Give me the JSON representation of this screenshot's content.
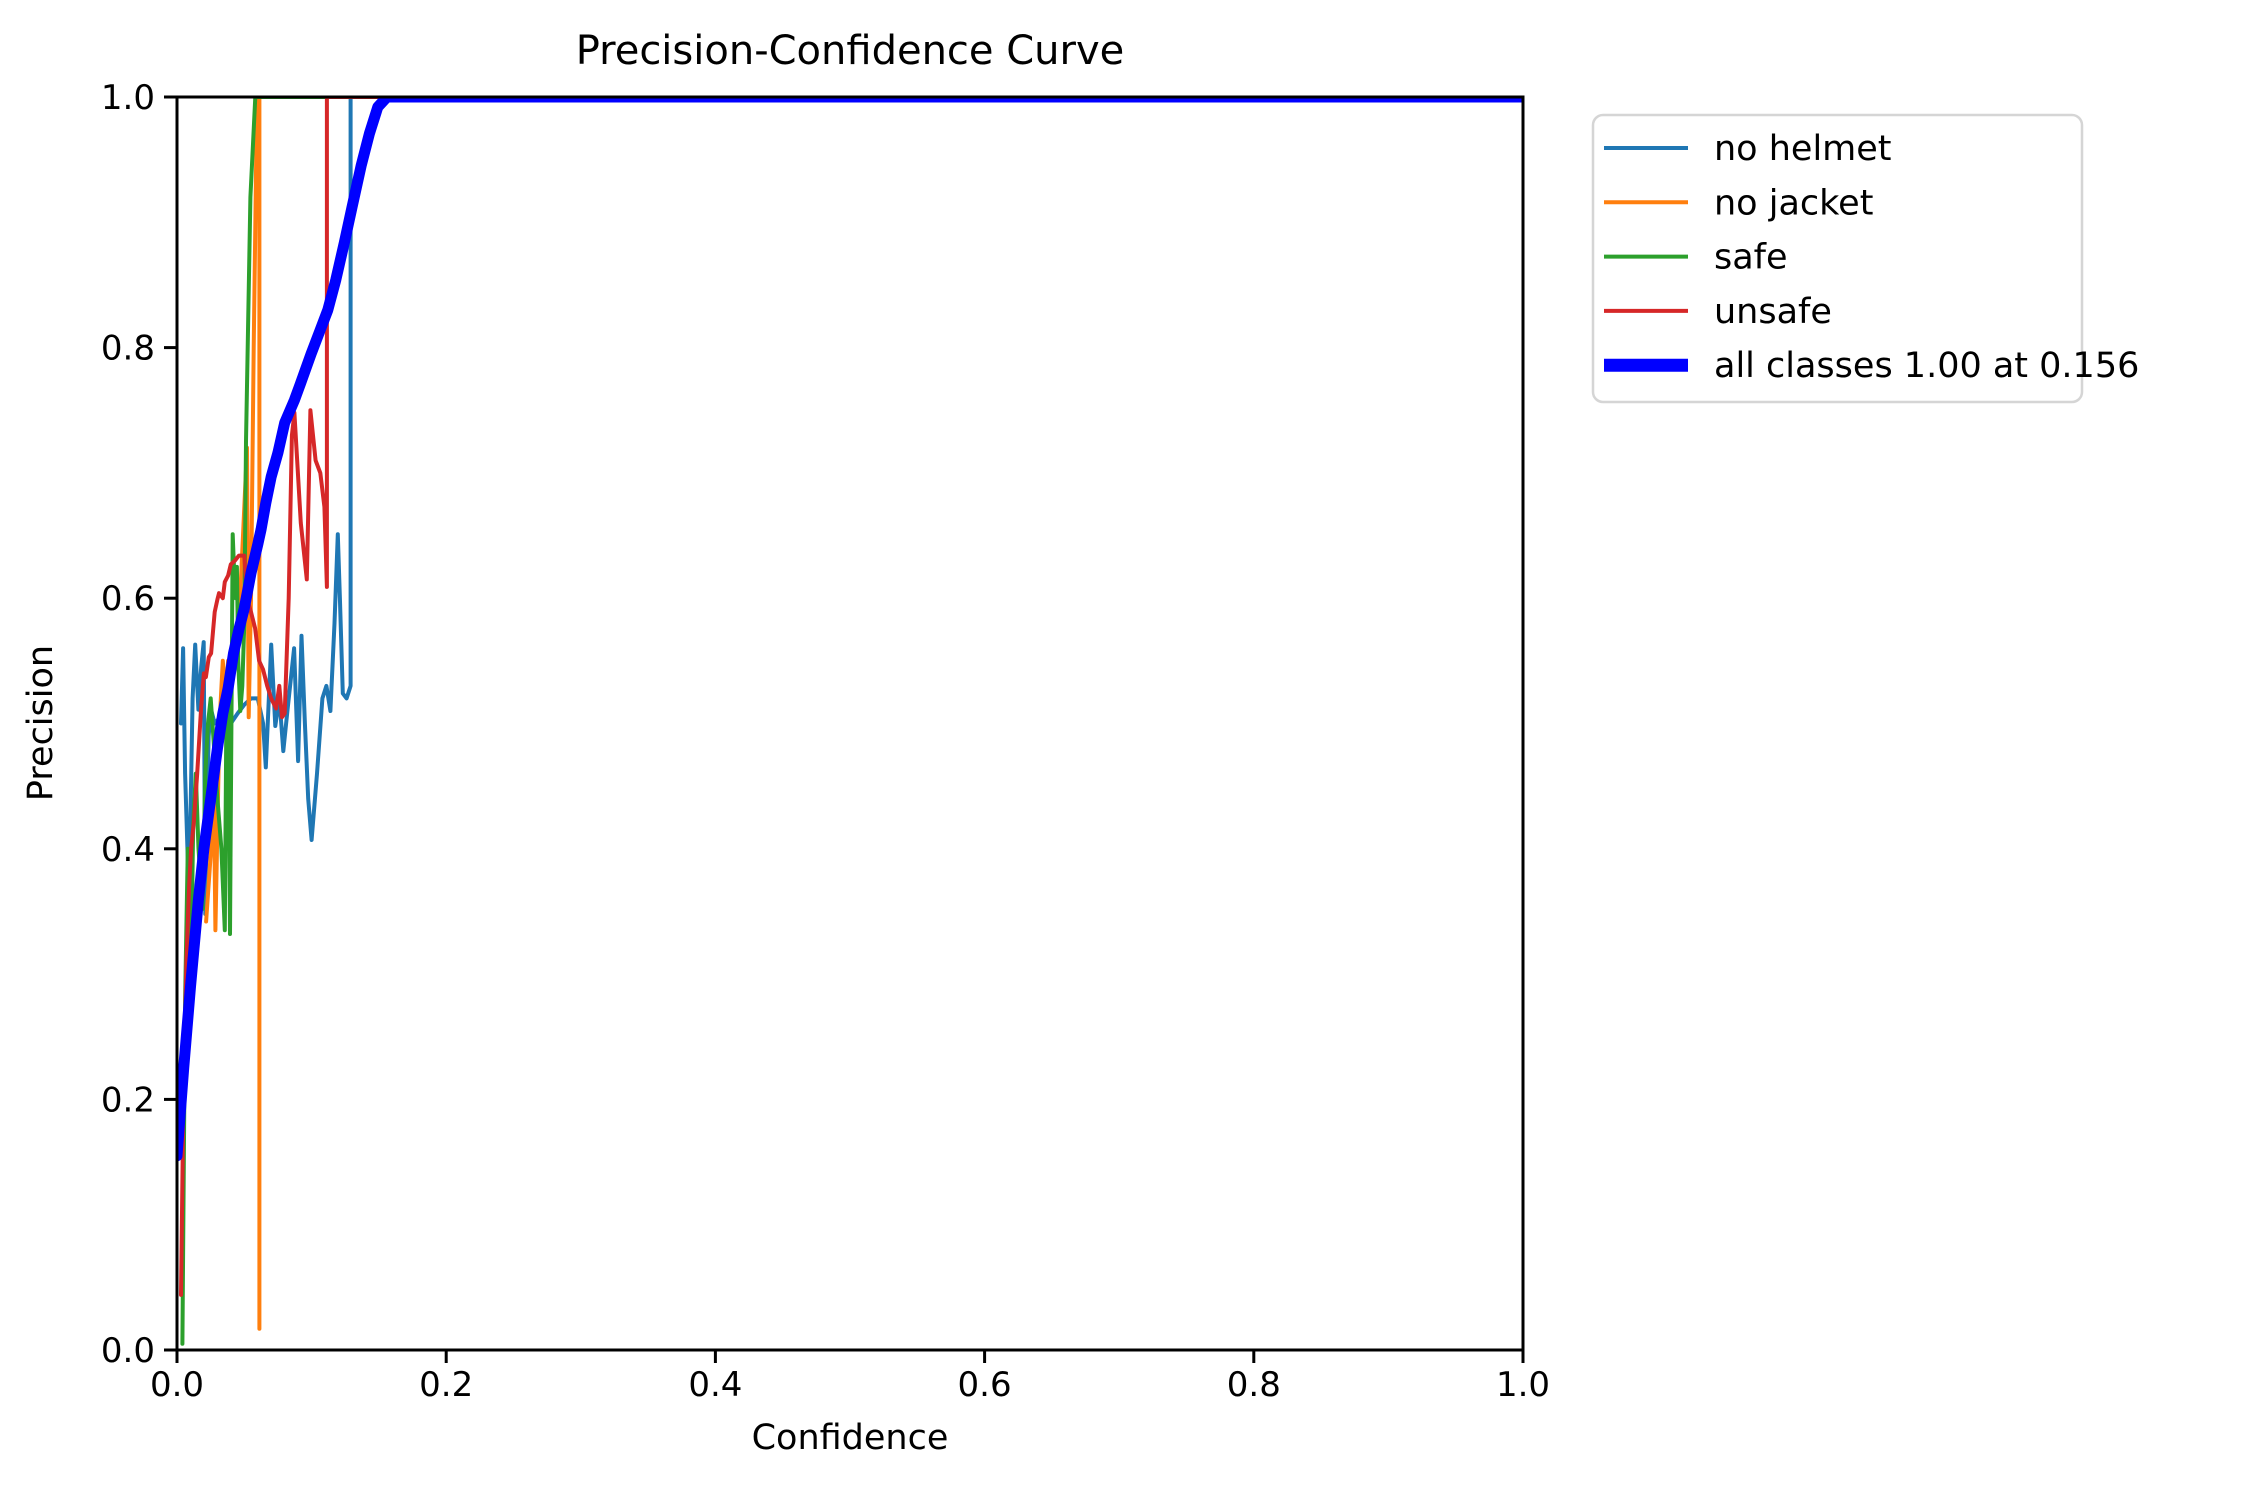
{
  "chart_data": {
    "type": "line",
    "title": "Precision-Confidence Curve",
    "xlabel": "Confidence",
    "ylabel": "Precision",
    "xlim": [
      0.0,
      1.0
    ],
    "ylim": [
      0.0,
      1.0
    ],
    "xticks": [
      0.0,
      0.2,
      0.4,
      0.6,
      0.8,
      1.0
    ],
    "yticks": [
      0.0,
      0.2,
      0.4,
      0.6,
      0.8,
      1.0
    ],
    "tick_decimals": 1,
    "grid": false,
    "legend_position": "outside-upper-right",
    "background_color": "#ffffff",
    "axis_color": "#000000",
    "legend_border_color": "#d5d5d5",
    "series": [
      {
        "name": "no helmet",
        "color": "#1f77b4",
        "line_width": 4,
        "points": [
          [
            0.003,
            0.5
          ],
          [
            0.0045,
            0.56
          ],
          [
            0.006,
            0.46
          ],
          [
            0.0089,
            0.36
          ],
          [
            0.0116,
            0.52
          ],
          [
            0.0135,
            0.563
          ],
          [
            0.0159,
            0.511
          ],
          [
            0.018,
            0.545
          ],
          [
            0.0198,
            0.565
          ],
          [
            0.021,
            0.348
          ],
          [
            0.0235,
            0.49
          ],
          [
            0.0253,
            0.511
          ],
          [
            0.028,
            0.5
          ],
          [
            0.032,
            0.505
          ],
          [
            0.036,
            0.51
          ],
          [
            0.04,
            0.5
          ],
          [
            0.045,
            0.508
          ],
          [
            0.05,
            0.515
          ],
          [
            0.055,
            0.52
          ],
          [
            0.06,
            0.52
          ],
          [
            0.064,
            0.5
          ],
          [
            0.066,
            0.465
          ],
          [
            0.07,
            0.563
          ],
          [
            0.073,
            0.498
          ],
          [
            0.076,
            0.521
          ],
          [
            0.079,
            0.478
          ],
          [
            0.082,
            0.51
          ],
          [
            0.087,
            0.56
          ],
          [
            0.09,
            0.47
          ],
          [
            0.0925,
            0.57
          ],
          [
            0.095,
            0.5
          ],
          [
            0.0975,
            0.44
          ],
          [
            0.1,
            0.407
          ],
          [
            0.104,
            0.46
          ],
          [
            0.108,
            0.52
          ],
          [
            0.111,
            0.53
          ],
          [
            0.114,
            0.51
          ],
          [
            0.117,
            0.58
          ],
          [
            0.1195,
            0.651
          ],
          [
            0.121,
            0.6
          ],
          [
            0.1232,
            0.524
          ],
          [
            0.126,
            0.52
          ],
          [
            0.129,
            0.53
          ],
          [
            0.129,
            1.0
          ],
          [
            1.0,
            1.0
          ]
        ]
      },
      {
        "name": "no jacket",
        "color": "#ff7f0e",
        "line_width": 4,
        "points": [
          [
            0.0216,
            0.342
          ],
          [
            0.0253,
            0.4
          ],
          [
            0.0275,
            0.439
          ],
          [
            0.0285,
            0.335
          ],
          [
            0.0315,
            0.498
          ],
          [
            0.034,
            0.55
          ],
          [
            0.036,
            0.52
          ],
          [
            0.038,
            0.55
          ],
          [
            0.04,
            0.53
          ],
          [
            0.043,
            0.55
          ],
          [
            0.046,
            0.58
          ],
          [
            0.049,
            0.65
          ],
          [
            0.052,
            0.72
          ],
          [
            0.0533,
            0.505
          ],
          [
            0.055,
            0.6
          ],
          [
            0.057,
            0.8
          ],
          [
            0.0594,
            1.0
          ],
          [
            0.0612,
            1.0
          ],
          [
            0.0612,
            0.017
          ]
        ]
      },
      {
        "name": "safe",
        "color": "#2ca02c",
        "line_width": 4,
        "points": [
          [
            0.004,
            0.005
          ],
          [
            0.006,
            0.28
          ],
          [
            0.008,
            0.4
          ],
          [
            0.0104,
            0.3
          ],
          [
            0.012,
            0.42
          ],
          [
            0.014,
            0.46
          ],
          [
            0.016,
            0.4
          ],
          [
            0.019,
            0.352
          ],
          [
            0.021,
            0.46
          ],
          [
            0.023,
            0.5
          ],
          [
            0.025,
            0.52
          ],
          [
            0.027,
            0.49
          ],
          [
            0.03,
            0.44
          ],
          [
            0.033,
            0.4
          ],
          [
            0.0355,
            0.335
          ],
          [
            0.0368,
            0.52
          ],
          [
            0.0378,
            0.545
          ],
          [
            0.0388,
            0.42
          ],
          [
            0.0394,
            0.332
          ],
          [
            0.0414,
            0.651
          ],
          [
            0.0425,
            0.62
          ],
          [
            0.0435,
            0.6
          ],
          [
            0.0445,
            0.625
          ],
          [
            0.0455,
            0.55
          ],
          [
            0.047,
            0.51
          ],
          [
            0.0485,
            0.53
          ],
          [
            0.05,
            0.58
          ],
          [
            0.0513,
            0.725
          ],
          [
            0.0545,
            0.92
          ],
          [
            0.0582,
            1.0
          ],
          [
            1.0,
            1.0
          ]
        ]
      },
      {
        "name": "unsafe",
        "color": "#d62728",
        "line_width": 4,
        "points": [
          [
            0.003,
            0.044
          ],
          [
            0.005,
            0.22
          ],
          [
            0.007,
            0.31
          ],
          [
            0.009,
            0.37
          ],
          [
            0.0105,
            0.4
          ],
          [
            0.0124,
            0.42
          ],
          [
            0.015,
            0.46
          ],
          [
            0.0178,
            0.511
          ],
          [
            0.02,
            0.54
          ],
          [
            0.0215,
            0.537
          ],
          [
            0.0236,
            0.553
          ],
          [
            0.0253,
            0.556
          ],
          [
            0.028,
            0.589
          ],
          [
            0.03,
            0.599
          ],
          [
            0.0312,
            0.604
          ],
          [
            0.034,
            0.6
          ],
          [
            0.0355,
            0.613
          ],
          [
            0.038,
            0.618
          ],
          [
            0.04,
            0.627
          ],
          [
            0.043,
            0.63
          ],
          [
            0.046,
            0.634
          ],
          [
            0.05,
            0.634
          ],
          [
            0.052,
            0.6
          ],
          [
            0.055,
            0.589
          ],
          [
            0.058,
            0.576
          ],
          [
            0.061,
            0.55
          ],
          [
            0.064,
            0.543
          ],
          [
            0.067,
            0.53
          ],
          [
            0.07,
            0.52
          ],
          [
            0.0736,
            0.512
          ],
          [
            0.076,
            0.53
          ],
          [
            0.078,
            0.505
          ],
          [
            0.08,
            0.508
          ],
          [
            0.083,
            0.6
          ],
          [
            0.0854,
            0.73
          ],
          [
            0.0872,
            0.748
          ],
          [
            0.092,
            0.66
          ],
          [
            0.0964,
            0.615
          ],
          [
            0.0991,
            0.75
          ],
          [
            0.103,
            0.71
          ],
          [
            0.1065,
            0.7
          ],
          [
            0.1095,
            0.673
          ],
          [
            0.1114,
            0.609
          ],
          [
            0.1114,
            1.0
          ],
          [
            1.0,
            1.0
          ]
        ]
      },
      {
        "name": "all classes 1.00 at 0.156",
        "color": "#0000ff",
        "line_width": 11,
        "points": [
          [
            0.0,
            0.155
          ],
          [
            0.005,
            0.225
          ],
          [
            0.01,
            0.29
          ],
          [
            0.013,
            0.325
          ],
          [
            0.016,
            0.36
          ],
          [
            0.02,
            0.4
          ],
          [
            0.025,
            0.44
          ],
          [
            0.03,
            0.48
          ],
          [
            0.034,
            0.508
          ],
          [
            0.038,
            0.528
          ],
          [
            0.042,
            0.556
          ],
          [
            0.046,
            0.575
          ],
          [
            0.05,
            0.592
          ],
          [
            0.055,
            0.62
          ],
          [
            0.06,
            0.643
          ],
          [
            0.0625,
            0.655
          ],
          [
            0.066,
            0.676
          ],
          [
            0.07,
            0.697
          ],
          [
            0.075,
            0.716
          ],
          [
            0.08,
            0.74
          ],
          [
            0.0872,
            0.758
          ],
          [
            0.092,
            0.772
          ],
          [
            0.0996,
            0.795
          ],
          [
            0.106,
            0.813
          ],
          [
            0.112,
            0.83
          ],
          [
            0.118,
            0.854
          ],
          [
            0.1244,
            0.884
          ],
          [
            0.13,
            0.912
          ],
          [
            0.1368,
            0.945
          ],
          [
            0.143,
            0.971
          ],
          [
            0.1492,
            0.992
          ],
          [
            0.156,
            1.0
          ],
          [
            1.0,
            1.0
          ]
        ]
      }
    ]
  },
  "legend": {
    "entries": [
      {
        "label": "no helmet",
        "color": "#1f77b4",
        "sample_width": 4
      },
      {
        "label": "no jacket",
        "color": "#ff7f0e",
        "sample_width": 4
      },
      {
        "label": "safe",
        "color": "#2ca02c",
        "sample_width": 4
      },
      {
        "label": "unsafe",
        "color": "#d62728",
        "sample_width": 4
      },
      {
        "label": "all classes 1.00 at 0.156",
        "color": "#0000ff",
        "sample_width": 13
      }
    ]
  }
}
